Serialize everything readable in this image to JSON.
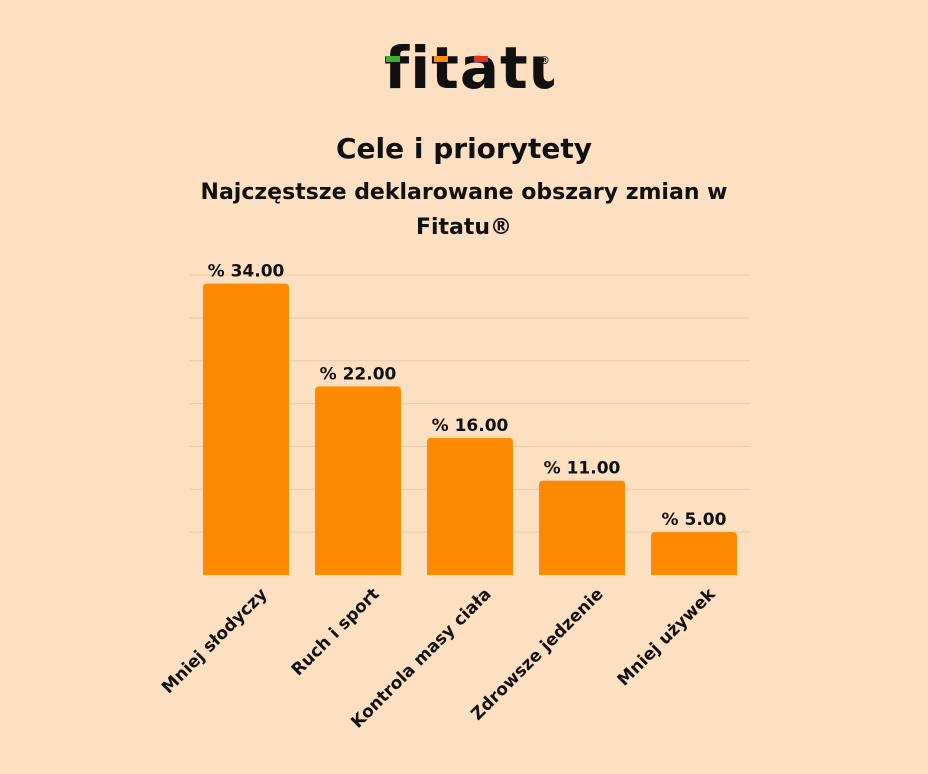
{
  "brand": {
    "logo_text": "fitatu",
    "colors": {
      "background": "#FDDFC2",
      "bar": "#FF8A00",
      "logo_text": "#111111",
      "logo_green": "#3FAE2A",
      "logo_orange": "#FF8A00",
      "logo_red": "#E63325",
      "gridline": "#EEC9A6"
    }
  },
  "chart_data": {
    "type": "bar",
    "title": "Cele i priorytety",
    "subtitle_line1": "Najczęstsze deklarowane obszary zmian w",
    "subtitle_line2": "Fitatu®",
    "categories": [
      "Mniej słodyczy",
      "Ruch i sport",
      "Kontrola masy ciała",
      "Zdrowsze jedzenie",
      "Mniej używek"
    ],
    "values": [
      34,
      22,
      16,
      11,
      5
    ],
    "value_labels": [
      "% 34.00",
      "% 22.00",
      "% 16.00",
      "% 11.00",
      "% 5.00"
    ],
    "ylim": [
      0,
      35
    ],
    "gridline_step": 5,
    "grid": true,
    "legend": "none",
    "xlabel": "",
    "ylabel": ""
  }
}
